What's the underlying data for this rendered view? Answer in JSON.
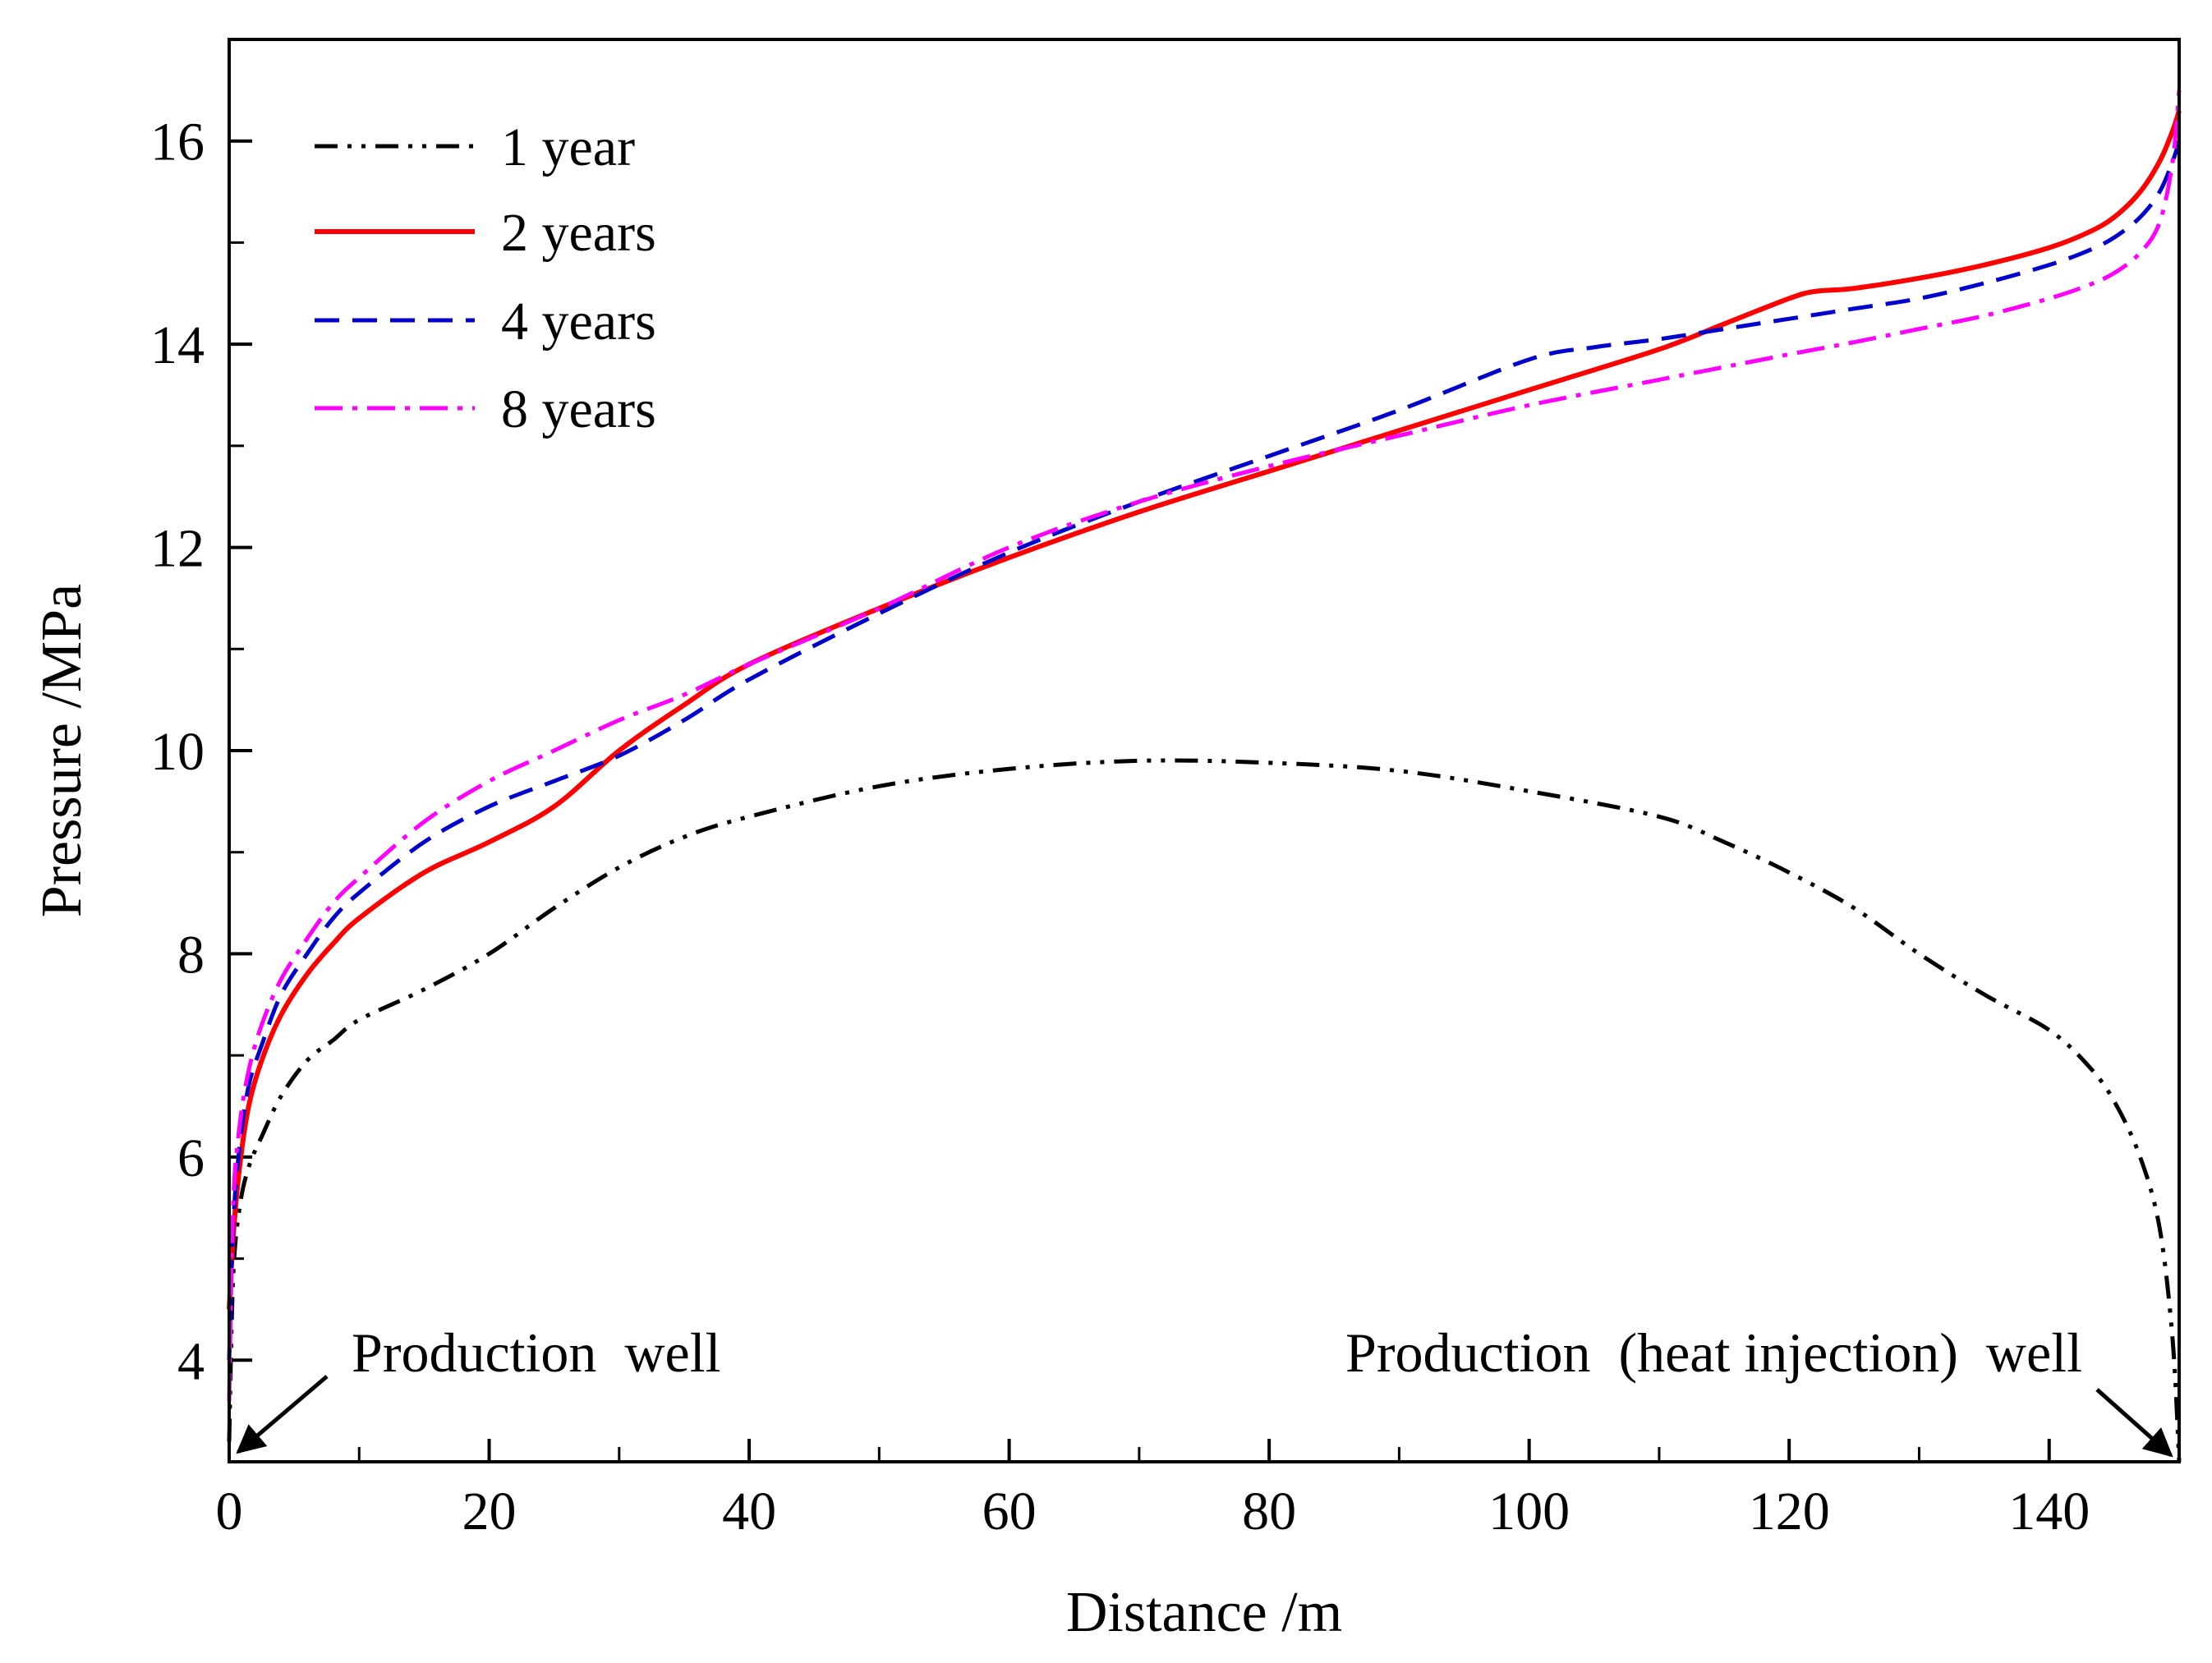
{
  "chart_data": {
    "type": "line",
    "title": "",
    "xlabel": "Distance /m",
    "ylabel": "Pressure /MPa",
    "xlim": [
      0,
      150
    ],
    "ylim": [
      3,
      17
    ],
    "x_ticks": [
      0,
      20,
      40,
      60,
      80,
      100,
      120,
      140
    ],
    "x_minor_ticks": [
      10,
      30,
      50,
      70,
      90,
      110,
      130,
      150
    ],
    "y_ticks": [
      4,
      6,
      8,
      10,
      12,
      14,
      16
    ],
    "y_minor_ticks": [
      3,
      5,
      7,
      9,
      11,
      13,
      15,
      17
    ],
    "grid": false,
    "legend_position": "top-left",
    "annotations": [
      {
        "text": "Production  well",
        "arrow_to": [
          0,
          3
        ],
        "anchor": "left"
      },
      {
        "text": "Production  (heat injection)  well",
        "arrow_to": [
          150,
          3
        ],
        "anchor": "right"
      }
    ],
    "series": [
      {
        "name": "1 year",
        "color": "#000000",
        "style": "dash-dot-dot",
        "x": [
          0,
          0.3,
          0.8,
          1.5,
          2.5,
          4,
          6,
          8,
          10,
          15,
          20,
          25,
          30,
          35,
          40,
          50,
          60,
          70,
          80,
          90,
          100,
          110,
          115,
          120,
          125,
          130,
          135,
          140,
          143,
          145,
          147,
          148.5,
          149.5,
          150
        ],
        "values": [
          3.2,
          4.8,
          5.5,
          5.9,
          6.2,
          6.6,
          6.95,
          7.15,
          7.35,
          7.65,
          8.0,
          8.45,
          8.85,
          9.15,
          9.35,
          9.65,
          9.82,
          9.9,
          9.88,
          9.8,
          9.6,
          9.35,
          9.1,
          8.8,
          8.45,
          8.0,
          7.6,
          7.25,
          6.9,
          6.55,
          6.0,
          5.3,
          4.2,
          3.0
        ]
      },
      {
        "name": "2 years",
        "color": "#ff0000",
        "style": "solid",
        "x": [
          0,
          0.3,
          0.8,
          1.5,
          2.5,
          4,
          6,
          8,
          10,
          15,
          20,
          25,
          30,
          35,
          40,
          50,
          60,
          70,
          80,
          90,
          100,
          110,
          115,
          120,
          122,
          125,
          130,
          135,
          140,
          143,
          145,
          147,
          148.5,
          149.5,
          150
        ],
        "values": [
          4.5,
          5.2,
          5.9,
          6.5,
          6.95,
          7.4,
          7.8,
          8.1,
          8.35,
          8.8,
          9.1,
          9.45,
          10.0,
          10.45,
          10.85,
          11.4,
          11.9,
          12.35,
          12.75,
          13.15,
          13.55,
          13.95,
          14.2,
          14.45,
          14.52,
          14.55,
          14.65,
          14.78,
          14.95,
          15.1,
          15.25,
          15.5,
          15.8,
          16.1,
          16.3
        ]
      },
      {
        "name": "4 years",
        "color": "#0000cc",
        "style": "dashed",
        "x": [
          0,
          0.3,
          0.8,
          1.5,
          2.5,
          4,
          6,
          8,
          10,
          15,
          20,
          25,
          30,
          35,
          40,
          50,
          60,
          70,
          80,
          90,
          100,
          105,
          110,
          115,
          120,
          125,
          130,
          135,
          140,
          143,
          145,
          147,
          148.5,
          149.5,
          150
        ],
        "values": [
          4.0,
          5.3,
          6.1,
          6.7,
          7.1,
          7.6,
          8.0,
          8.35,
          8.6,
          9.1,
          9.45,
          9.7,
          9.95,
          10.3,
          10.7,
          11.35,
          11.95,
          12.45,
          12.9,
          13.35,
          13.85,
          13.97,
          14.05,
          14.15,
          14.25,
          14.35,
          14.45,
          14.6,
          14.78,
          14.92,
          15.05,
          15.25,
          15.5,
          15.8,
          16.0
        ]
      },
      {
        "name": "8 years",
        "color": "#ff00ff",
        "style": "dash-dot",
        "x": [
          0,
          0.3,
          0.8,
          1.5,
          2.5,
          4,
          6,
          8,
          10,
          15,
          20,
          25,
          30,
          35,
          40,
          50,
          60,
          70,
          80,
          90,
          100,
          110,
          120,
          125,
          130,
          135,
          140,
          143,
          145,
          147,
          148.5,
          149.5,
          150
        ],
        "values": [
          3.6,
          5.5,
          6.3,
          6.85,
          7.3,
          7.75,
          8.15,
          8.5,
          8.75,
          9.3,
          9.7,
          10.0,
          10.3,
          10.55,
          10.85,
          11.4,
          12.0,
          12.45,
          12.8,
          13.1,
          13.4,
          13.65,
          13.9,
          14.02,
          14.15,
          14.28,
          14.45,
          14.58,
          14.7,
          14.9,
          15.2,
          15.8,
          16.5
        ]
      }
    ]
  }
}
